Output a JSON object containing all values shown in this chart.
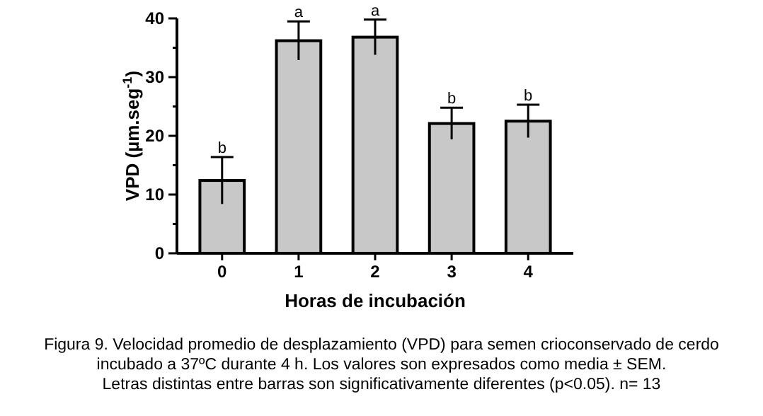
{
  "chart_data": {
    "type": "bar",
    "xlabel": "Horas de incubación",
    "ylabel": "VPD (µm.seg$^{-1}$)",
    "categories": [
      "0",
      "1",
      "2",
      "3",
      "4"
    ],
    "values": [
      12.4,
      36.2,
      36.8,
      22.1,
      22.5
    ],
    "errors": [
      4.0,
      3.3,
      3.0,
      2.7,
      2.8
    ],
    "color": "#c8c8c8",
    "ylim": [
      0,
      40
    ],
    "yticks": [
      0,
      {
        "value": 5,
        "label": null
      },
      10,
      {
        "value": 15,
        "label": null
      },
      20,
      {
        "value": 25,
        "label": null
      },
      30,
      {
        "value": 35,
        "label": null
      },
      40
    ],
    "annotations": [
      {
        "text": "b",
        "x": "0",
        "y": 16.4
      },
      {
        "text": "a",
        "x": "1",
        "y": 39.5
      },
      {
        "text": "a",
        "x": "2",
        "y": 39.8
      },
      {
        "text": "b",
        "x": "3",
        "y": 24.8
      },
      {
        "text": "b",
        "x": "4",
        "y": 25.3
      },
      "Figura 9. Velocidad promedio de desplazamiento (VPD) para semen crioconservado de cerdo",
      "incubado a 37ºC durante 4 h. Los valores son expresados como media ± SEM.",
      "Letras distintas entre barras son significativamente diferentes (p<0.05). n= 13"
    ]
  }
}
